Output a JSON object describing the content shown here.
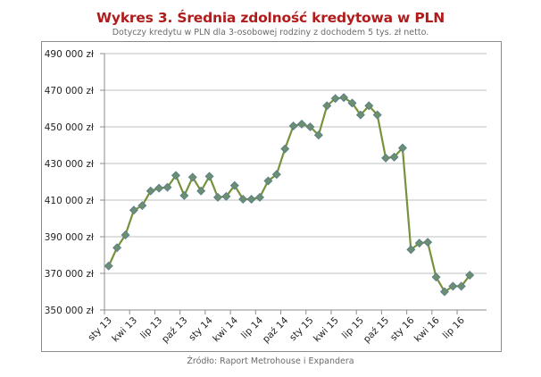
{
  "header": {
    "title": "Wykres 3. Średnia zdolność kredytowa w PLN",
    "subtitle": "Dotyczy kredytu w PLN dla 3-osobowej rodziny z dochodem 5 tys. zł netto."
  },
  "footer": {
    "source": "Źródło: Raport Metrohouse i Expandera"
  },
  "colors": {
    "title": "#b01c1c",
    "line": "#76923c",
    "marker_fill": "#6e8f6e",
    "marker_stroke": "#5a7f8c",
    "grid": "#bfbfbf",
    "axis": "#8c8c8c"
  },
  "chart_data": {
    "type": "line",
    "title": "Wykres 3. Średnia zdolność kredytowa w PLN",
    "subtitle": "Dotyczy kredytu w PLN dla 3-osobowej rodziny z dochodem 5 tys. zł netto.",
    "xlabel": "",
    "ylabel": "",
    "ylim": [
      350000,
      490000
    ],
    "y_ticks": [
      350000,
      370000,
      390000,
      410000,
      430000,
      450000,
      470000,
      490000
    ],
    "y_tick_labels": [
      "350 000 zł",
      "370 000 zł",
      "390 000 zł",
      "410 000 zł",
      "430 000 zł",
      "450 000 zł",
      "470 000 zł",
      "490 000 zł"
    ],
    "x_tick_labels": [
      "sty 13",
      "kwi 13",
      "lip 13",
      "paź 13",
      "sty 14",
      "kwi 14",
      "lip 14",
      "paź 14",
      "sty 15",
      "kwi 15",
      "lip 15",
      "paź 15",
      "sty 16",
      "kwi 16",
      "lip 16"
    ],
    "x_tick_every": 3,
    "grid": true,
    "legend": "none",
    "categories": [
      "sty 13",
      "lut 13",
      "mar 13",
      "kwi 13",
      "maj 13",
      "cze 13",
      "lip 13",
      "sie 13",
      "wrz 13",
      "paź 13",
      "lis 13",
      "gru 13",
      "sty 14",
      "lut 14",
      "mar 14",
      "kwi 14",
      "maj 14",
      "cze 14",
      "lip 14",
      "sie 14",
      "wrz 14",
      "paź 14",
      "lis 14",
      "gru 14",
      "sty 15",
      "lut 15",
      "mar 15",
      "kwi 15",
      "maj 15",
      "cze 15",
      "lip 15",
      "sie 15",
      "wrz 15",
      "paź 15",
      "lis 15",
      "gru 15",
      "sty 16",
      "lut 16",
      "mar 16",
      "kwi 16",
      "maj 16",
      "cze 16",
      "lip 16",
      "sie 16"
    ],
    "series": [
      {
        "name": "Średnia zdolność kredytowa",
        "values": [
          374000,
          384000,
          391000,
          404500,
          407000,
          415000,
          416500,
          417000,
          423500,
          412500,
          422500,
          415000,
          423000,
          411500,
          412000,
          418000,
          410500,
          410500,
          411500,
          420500,
          424000,
          438000,
          450500,
          451500,
          450000,
          445500,
          461500,
          465500,
          466000,
          463000,
          456500,
          461500,
          456500,
          433000,
          433500,
          438500,
          383000,
          386500,
          387000,
          368000,
          360000,
          363000,
          363000,
          369000
        ]
      }
    ]
  }
}
